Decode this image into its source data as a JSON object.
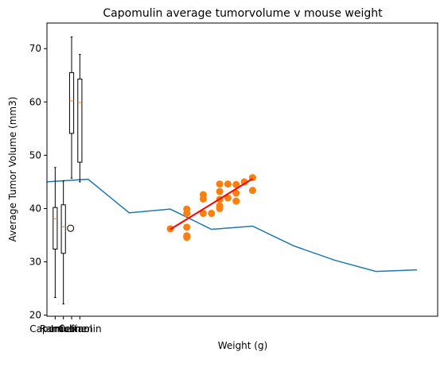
{
  "chart_data": {
    "title": "Capomulin average tumorvolume v mouse weight",
    "xlabel": "Weight (g)",
    "ylabel": "Average Tumor Volume (mm3)",
    "xlim": [
      0,
      47.5
    ],
    "ylim": [
      19.8,
      74.8
    ],
    "y_ticks": [
      20,
      30,
      40,
      50,
      60,
      70
    ],
    "grid": false,
    "legend": "none",
    "boxplot": {
      "type": "box",
      "categories": [
        "Capomulin",
        "Ramicane",
        "Infubinol",
        "Ceftamin"
      ],
      "positions": [
        1,
        2,
        3,
        4
      ],
      "boxes": [
        {
          "name": "Capomulin",
          "whislo": 23.3,
          "q1": 32.4,
          "med": 38.1,
          "q3": 40.2,
          "whishi": 47.7,
          "fliers": []
        },
        {
          "name": "Ramicane",
          "whislo": 22.1,
          "q1": 31.6,
          "med": 36.6,
          "q3": 40.7,
          "whishi": 45.2,
          "fliers": [
            36.3
          ]
        },
        {
          "name": "Infubinol",
          "whislo": 45.7,
          "q1": 54.1,
          "med": 60.2,
          "q3": 65.5,
          "whishi": 72.2,
          "fliers": []
        },
        {
          "name": "Ceftamin",
          "whislo": 45.0,
          "q1": 48.7,
          "med": 59.9,
          "q3": 64.3,
          "whishi": 68.9,
          "fliers": []
        }
      ],
      "colors": {
        "box": "#000000",
        "median": "#ff7f0e",
        "flier": "#000000"
      }
    },
    "line": {
      "type": "line",
      "x": [
        0,
        5,
        10,
        15,
        20,
        25,
        30,
        35,
        40,
        45
      ],
      "y": [
        45.0,
        45.5,
        39.2,
        39.9,
        36.1,
        36.7,
        33.0,
        30.3,
        28.2,
        28.5
      ],
      "color": "#1f77b4"
    },
    "scatter": {
      "type": "scatter",
      "color": "#ff7f0e",
      "points": [
        [
          15,
          36.2
        ],
        [
          17,
          34.6
        ],
        [
          17,
          34.9
        ],
        [
          17,
          36.5
        ],
        [
          17,
          39.1
        ],
        [
          17,
          39.9
        ],
        [
          19,
          39.1
        ],
        [
          19,
          41.8
        ],
        [
          19,
          42.6
        ],
        [
          20,
          39.1
        ],
        [
          21,
          40.0
        ],
        [
          21,
          40.5
        ],
        [
          21,
          41.7
        ],
        [
          21,
          43.2
        ],
        [
          21,
          44.6
        ],
        [
          22,
          42.0
        ],
        [
          22,
          44.6
        ],
        [
          23,
          41.4
        ],
        [
          23,
          42.9
        ],
        [
          23,
          44.5
        ],
        [
          24,
          45.0
        ],
        [
          25,
          43.4
        ],
        [
          25,
          45.8
        ]
      ]
    },
    "regression": {
      "type": "line",
      "x": [
        15,
        25
      ],
      "y": [
        36.1,
        45.6
      ],
      "color": "#ff0000"
    }
  }
}
